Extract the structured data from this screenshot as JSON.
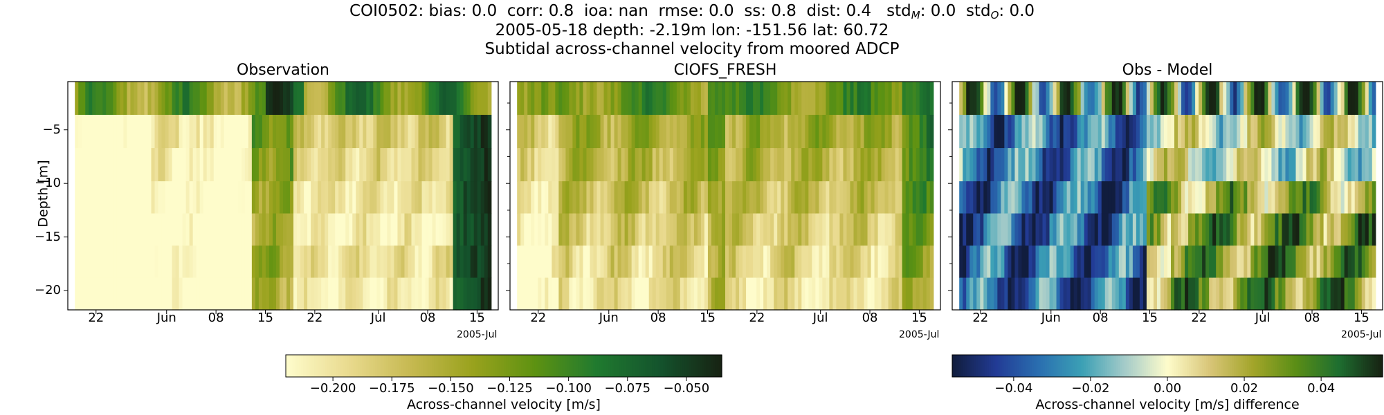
{
  "figure": {
    "station": "COI0502",
    "metrics": [
      {
        "key": "bias",
        "value": "0.0"
      },
      {
        "key": "corr",
        "value": "0.8"
      },
      {
        "key": "ioa",
        "value": "nan"
      },
      {
        "key": "rmse",
        "value": "0.0"
      },
      {
        "key": "ss",
        "value": "0.8"
      },
      {
        "key": "dist",
        "value": "0.4"
      }
    ],
    "std_model_label": "std",
    "std_model_sub": "M",
    "std_model_value": "0.0",
    "std_obs_label": "std",
    "std_obs_sub": "O",
    "std_obs_value": "0.0",
    "title_line2": "2005-05-18 depth: -2.19m lon: -151.56 lat: 60.72",
    "title_line3": "Subtidal across-channel velocity from moored ADCP"
  },
  "chart_data": [
    {
      "type": "heatmap",
      "title": "Observation",
      "ylabel": "Depth [m]",
      "yticks": [
        -5,
        -10,
        -15,
        -20
      ],
      "xticks": [
        "22",
        "Jun",
        "08",
        "15",
        "22",
        "Jul",
        "08",
        "15"
      ],
      "xyear": "2005-Jul",
      "xrange": [
        "2005-05-18",
        "2005-07-18"
      ],
      "depth_bins": [
        -2.19,
        -5.2,
        -8.2,
        -11.2,
        -14.2,
        -17.2,
        -20.2
      ],
      "colormap": "speed",
      "colorbar": "shared-left",
      "description_values_note": "across-channel velocity [m/s]; dark green near -0.05, pale yellow near -0.21"
    },
    {
      "type": "heatmap",
      "title": "CIOFS_FRESH",
      "xticks": [
        "22",
        "Jun",
        "08",
        "15",
        "22",
        "Jul",
        "08",
        "15"
      ],
      "xyear": "2005-Jul",
      "xrange": [
        "2005-05-18",
        "2005-07-18"
      ],
      "colormap": "speed",
      "colorbar": "shared-left"
    },
    {
      "type": "heatmap",
      "title": "Obs - Model",
      "xticks": [
        "22",
        "Jun",
        "08",
        "15",
        "22",
        "Jul",
        "08",
        "15"
      ],
      "xyear": "2005-Jul",
      "xrange": [
        "2005-05-18",
        "2005-07-18"
      ],
      "colormap": "delta",
      "colorbar": "right"
    }
  ],
  "colorbars": [
    {
      "label": "Across-channel velocity [m/s]",
      "ticks": [
        "−0.200",
        "−0.175",
        "−0.150",
        "−0.125",
        "−0.100",
        "−0.075",
        "−0.050"
      ],
      "tick_values": [
        -0.2,
        -0.175,
        -0.15,
        -0.125,
        -0.1,
        -0.075,
        -0.05
      ],
      "range": [
        -0.22,
        -0.035
      ],
      "colors": [
        "#fefccb",
        "#e9da8e",
        "#c6b951",
        "#99a21d",
        "#5e9212",
        "#207a2f",
        "#14542d",
        "#172313"
      ]
    },
    {
      "label": "Across-channel velocity [m/s] difference",
      "ticks": [
        "−0.04",
        "−0.02",
        "0.00",
        "0.02",
        "0.04"
      ],
      "tick_values": [
        -0.04,
        -0.02,
        0.0,
        0.02,
        0.04
      ],
      "range": [
        -0.056,
        0.056
      ],
      "colors": [
        "#111d3e",
        "#223b95",
        "#2a6fb0",
        "#3ba0b5",
        "#a4cbc9",
        "#fefccb",
        "#d8c577",
        "#a3a52a",
        "#5a8e16",
        "#1e6e30",
        "#172313"
      ]
    }
  ]
}
